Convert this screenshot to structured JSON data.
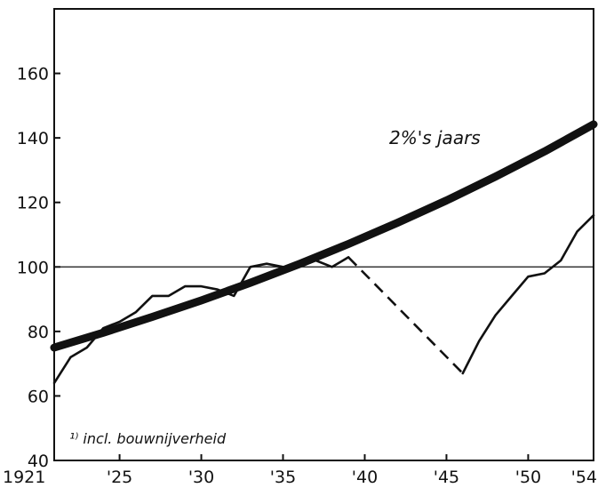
{
  "chart_data": {
    "type": "line",
    "title": "",
    "xlabel": "",
    "ylabel": "",
    "xlim": [
      1921,
      1954
    ],
    "ylim": [
      40,
      180
    ],
    "grid": false,
    "x_ticks": [
      1921,
      1925,
      1930,
      1935,
      1940,
      1945,
      1950,
      1954
    ],
    "x_tick_labels": [
      "1921",
      "'25",
      "'30",
      "'35",
      "'40",
      "'45",
      "'50",
      "'54"
    ],
    "y_ticks": [
      40,
      60,
      80,
      100,
      120,
      140,
      160
    ],
    "y_tick_labels": [
      "40",
      "60",
      "80",
      "100",
      "120",
      "140",
      "160"
    ],
    "reference_line": 100,
    "series": [
      {
        "name": "",
        "style": "thin",
        "x": [
          1921,
          1922,
          1923,
          1924,
          1925,
          1926,
          1927,
          1928,
          1929,
          1930,
          1931,
          1932,
          1933,
          1934,
          1935,
          1936,
          1937,
          1938,
          1939
        ],
        "values": [
          64,
          72,
          75,
          81,
          83,
          86,
          91,
          91,
          94,
          94,
          93,
          91,
          100,
          101,
          100,
          100,
          102,
          100,
          103
        ]
      },
      {
        "name": "",
        "style": "dashed",
        "x": [
          1939,
          1946
        ],
        "values": [
          103,
          67
        ]
      },
      {
        "name": "",
        "style": "thin",
        "x": [
          1946,
          1947,
          1948,
          1949,
          1950,
          1951,
          1952,
          1953,
          1954
        ],
        "values": [
          67,
          77,
          85,
          91,
          97,
          98,
          102,
          111,
          116
        ]
      },
      {
        "name": "",
        "style": "thick",
        "x": [
          1921,
          1924,
          1927,
          1930,
          1933,
          1936,
          1939,
          1942,
          1945,
          1948,
          1951,
          1954
        ],
        "values": [
          75.0,
          79.6,
          84.5,
          89.6,
          95.1,
          100.9,
          107.1,
          113.7,
          120.6,
          128.0,
          135.8,
          144.2
        ]
      }
    ],
    "annotations": [
      "2%'s jaars",
      "¹⁾ incl. bouwnijverheid"
    ]
  }
}
